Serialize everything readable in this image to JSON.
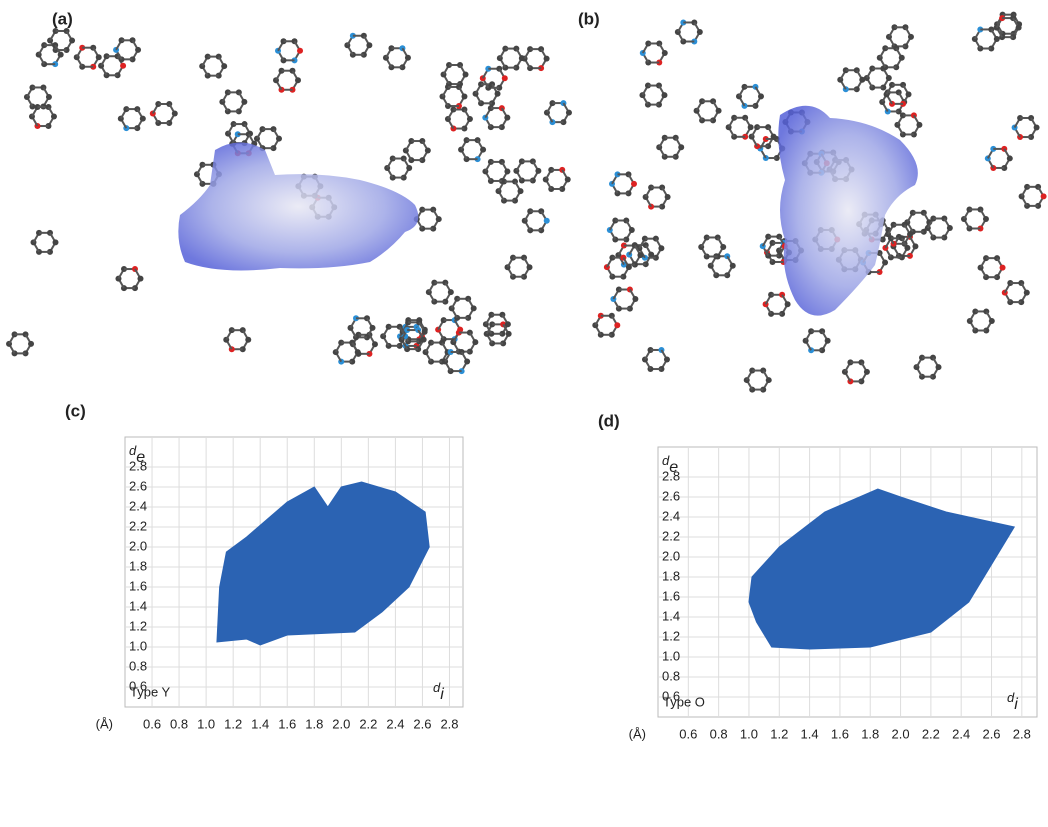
{
  "panels": [
    {
      "label": "(a)"
    },
    {
      "label": "(b)"
    }
  ],
  "chart_data": [
    {
      "type": "scatter",
      "panel_label": "(c)",
      "annotation": "Type Y",
      "x_unit": "(Å)",
      "xlabel_symbol": "d",
      "xlabel_subscript": "i",
      "ylabel_symbol": "d",
      "ylabel_subscript": "e",
      "color": "#2b63b3",
      "grid": true,
      "x": [
        1.08,
        1.1,
        1.15,
        1.3,
        1.6,
        1.8,
        1.9,
        2.0,
        2.15,
        2.4,
        2.62,
        2.65,
        2.5,
        2.3,
        2.1,
        1.6,
        1.4,
        1.3
      ],
      "y": [
        1.05,
        1.6,
        1.95,
        2.1,
        2.45,
        2.6,
        2.4,
        2.6,
        2.65,
        2.55,
        2.35,
        2.0,
        1.6,
        1.35,
        1.15,
        1.12,
        1.02,
        1.08
      ],
      "xlim": [
        0.4,
        2.9
      ],
      "ylim": [
        0.4,
        3.1
      ],
      "xticks": [
        0.6,
        0.8,
        {
          "value": 1,
          "label": "1.0"
        },
        1.2,
        1.4,
        1.6,
        1.8,
        {
          "value": 2,
          "label": "2.0"
        },
        2.2,
        2.4,
        2.6,
        2.8
      ],
      "yticks": [
        0.6,
        0.8,
        {
          "value": 1,
          "label": "1.0"
        },
        1.2,
        1.4,
        1.6,
        1.8,
        {
          "value": 2,
          "label": "2.0"
        },
        2.2,
        2.4,
        2.6,
        2.8
      ]
    },
    {
      "type": "scatter",
      "panel_label": "(d)",
      "annotation": "Type O",
      "x_unit": "(Å)",
      "xlabel_symbol": "d",
      "xlabel_subscript": "i",
      "ylabel_symbol": "d",
      "ylabel_subscript": "e",
      "color": "#2b63b3",
      "grid": true,
      "x": [
        1.0,
        1.05,
        1.15,
        1.4,
        1.8,
        2.2,
        2.45,
        2.65,
        2.75,
        2.6,
        2.3,
        2.0,
        1.85,
        1.5,
        1.2,
        1.02
      ],
      "y": [
        1.55,
        1.35,
        1.1,
        1.08,
        1.1,
        1.25,
        1.55,
        2.05,
        2.3,
        2.35,
        2.45,
        2.6,
        2.68,
        2.45,
        2.1,
        1.8
      ],
      "xlim": [
        0.4,
        2.9
      ],
      "ylim": [
        0.4,
        3.1
      ],
      "xticks": [
        0.6,
        0.8,
        {
          "value": 1,
          "label": "1.0"
        },
        1.2,
        1.4,
        1.6,
        1.8,
        {
          "value": 2,
          "label": "2.0"
        },
        2.2,
        2.4,
        2.6,
        2.8
      ],
      "yticks": [
        0.6,
        0.8,
        {
          "value": 1,
          "label": "1.0"
        },
        1.2,
        1.4,
        1.6,
        1.8,
        {
          "value": 2,
          "label": "2.0"
        },
        2.2,
        2.4,
        2.6,
        2.8
      ]
    }
  ]
}
